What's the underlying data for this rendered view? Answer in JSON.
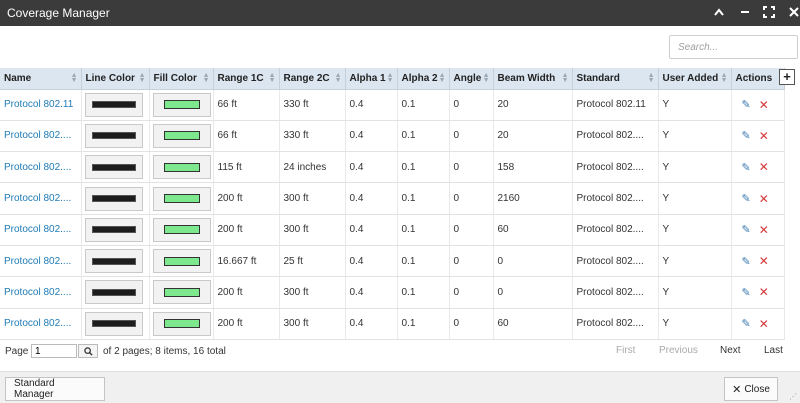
{
  "window": {
    "title": "Coverage Manager",
    "controls": {
      "collapse": "▲",
      "minimize": "—",
      "maximize": "⤧",
      "close": "✕"
    }
  },
  "search": {
    "placeholder": "Search..."
  },
  "table": {
    "columns": [
      "Name",
      "Line Color",
      "Fill Color",
      "Range 1C",
      "Range 2C",
      "Alpha 1",
      "Alpha 2",
      "Angle",
      "Beam Width",
      "Standard",
      "User Added",
      "Actions"
    ],
    "line_color": "#1d1d1d",
    "fill_color": "#7ee88f",
    "rows": [
      {
        "name": "Protocol 802.11",
        "range1c": "66 ft",
        "range2c": "330 ft",
        "alpha1": "0.4",
        "alpha2": "0.1",
        "angle": "0",
        "beam_width": "20",
        "standard": "Protocol 802.11",
        "user_added": "Y"
      },
      {
        "name": "Protocol 802....",
        "range1c": "66 ft",
        "range2c": "330 ft",
        "alpha1": "0.4",
        "alpha2": "0.1",
        "angle": "0",
        "beam_width": "20",
        "standard": "Protocol 802....",
        "user_added": "Y"
      },
      {
        "name": "Protocol 802....",
        "range1c": "115 ft",
        "range2c": "24 inches",
        "alpha1": "0.4",
        "alpha2": "0.1",
        "angle": "0",
        "beam_width": "158",
        "standard": "Protocol 802....",
        "user_added": "Y"
      },
      {
        "name": "Protocol 802....",
        "range1c": "200 ft",
        "range2c": "300 ft",
        "alpha1": "0.4",
        "alpha2": "0.1",
        "angle": "0",
        "beam_width": "2160",
        "standard": "Protocol 802....",
        "user_added": "Y"
      },
      {
        "name": "Protocol 802....",
        "range1c": "200 ft",
        "range2c": "300 ft",
        "alpha1": "0.4",
        "alpha2": "0.1",
        "angle": "0",
        "beam_width": "60",
        "standard": "Protocol 802....",
        "user_added": "Y"
      },
      {
        "name": "Protocol 802....",
        "range1c": "16.667 ft",
        "range2c": "25 ft",
        "alpha1": "0.4",
        "alpha2": "0.1",
        "angle": "0",
        "beam_width": "0",
        "standard": "Protocol 802....",
        "user_added": "Y"
      },
      {
        "name": "Protocol 802....",
        "range1c": "200 ft",
        "range2c": "300 ft",
        "alpha1": "0.4",
        "alpha2": "0.1",
        "angle": "0",
        "beam_width": "0",
        "standard": "Protocol 802....",
        "user_added": "Y"
      },
      {
        "name": "Protocol 802....",
        "range1c": "200 ft",
        "range2c": "300 ft",
        "alpha1": "0.4",
        "alpha2": "0.1",
        "angle": "0",
        "beam_width": "60",
        "standard": "Protocol 802....",
        "user_added": "Y"
      }
    ]
  },
  "pager": {
    "page_label": "Page",
    "page_value": "1",
    "info": "of 2 pages; 8 items, 16 total",
    "first": "First",
    "previous": "Previous",
    "next": "Next",
    "last": "Last"
  },
  "footer": {
    "standard_manager": "Standard Manager",
    "close": "Close"
  },
  "icons": {
    "edit": "pencil-icon",
    "delete": "x-icon",
    "add": "plus-icon",
    "go": "magnifier-icon"
  }
}
